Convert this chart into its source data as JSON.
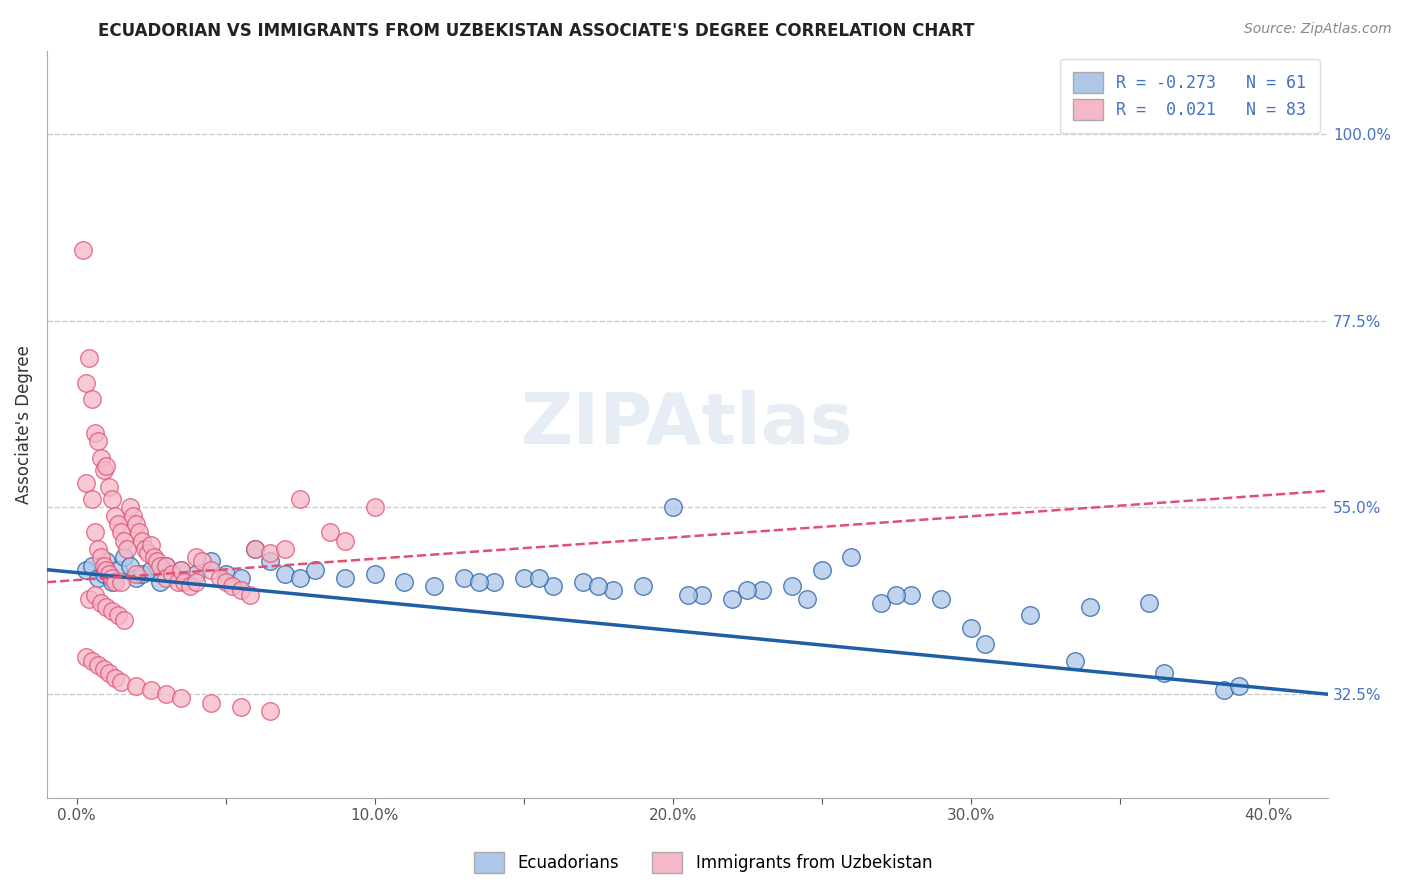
{
  "title": "ECUADORIAN VS IMMIGRANTS FROM UZBEKISTAN ASSOCIATE'S DEGREE CORRELATION CHART",
  "source": "Source: ZipAtlas.com",
  "ylabel": "Associate's Degree",
  "x_ticks": [
    0.0,
    5.0,
    10.0,
    15.0,
    20.0,
    25.0,
    30.0,
    35.0,
    40.0
  ],
  "x_tick_labels": [
    "0.0%",
    "",
    "10.0%",
    "",
    "20.0%",
    "",
    "30.0%",
    "",
    "40.0%"
  ],
  "y_ticks_right": [
    32.5,
    55.0,
    77.5,
    100.0
  ],
  "y_tick_labels_right": [
    "32.5%",
    "55.0%",
    "77.5%",
    "100.0%"
  ],
  "xlim": [
    -1.0,
    42.0
  ],
  "ylim": [
    20.0,
    110.0
  ],
  "legend_entry1": "R = -0.273   N = 61",
  "legend_entry2": "R =  0.021   N = 83",
  "ecuadorians_color": "#aec6e8",
  "uzbekistan_color": "#f5b8c8",
  "trendline_blue_color": "#1f5fa6",
  "trendline_pink_color": "#e05070",
  "background_color": "#ffffff",
  "watermark": "ZIPAtlas",
  "blue_scatter_x": [
    0.3,
    0.5,
    0.7,
    0.9,
    1.0,
    1.2,
    1.4,
    1.6,
    1.8,
    2.0,
    2.2,
    2.5,
    2.8,
    3.0,
    3.5,
    4.0,
    4.5,
    5.0,
    5.5,
    6.0,
    6.5,
    7.0,
    7.5,
    8.0,
    9.0,
    10.0,
    11.0,
    12.0,
    13.0,
    14.0,
    15.0,
    16.0,
    17.0,
    18.0,
    19.0,
    20.0,
    21.0,
    22.0,
    23.0,
    24.0,
    25.0,
    26.0,
    27.0,
    28.0,
    29.0,
    30.0,
    32.0,
    34.0,
    36.0,
    38.5,
    13.5,
    15.5,
    17.5,
    20.5,
    22.5,
    24.5,
    27.5,
    30.5,
    33.5,
    36.5,
    39.0
  ],
  "blue_scatter_y": [
    47.5,
    48.0,
    46.5,
    47.0,
    48.5,
    46.0,
    47.5,
    49.0,
    48.0,
    46.5,
    47.0,
    47.5,
    46.0,
    48.0,
    47.5,
    47.0,
    48.5,
    47.0,
    46.5,
    50.0,
    48.5,
    47.0,
    46.5,
    47.5,
    46.5,
    47.0,
    46.0,
    45.5,
    46.5,
    46.0,
    46.5,
    45.5,
    46.0,
    45.0,
    45.5,
    55.0,
    44.5,
    44.0,
    45.0,
    45.5,
    47.5,
    49.0,
    43.5,
    44.5,
    44.0,
    40.5,
    42.0,
    43.0,
    43.5,
    33.0,
    46.0,
    46.5,
    45.5,
    44.5,
    45.0,
    44.0,
    44.5,
    38.5,
    36.5,
    35.0,
    33.5
  ],
  "pink_scatter_x": [
    0.2,
    0.3,
    0.3,
    0.4,
    0.5,
    0.5,
    0.6,
    0.6,
    0.7,
    0.7,
    0.8,
    0.8,
    0.9,
    0.9,
    1.0,
    1.0,
    1.1,
    1.1,
    1.2,
    1.2,
    1.3,
    1.3,
    1.4,
    1.5,
    1.5,
    1.6,
    1.7,
    1.8,
    1.9,
    2.0,
    2.0,
    2.1,
    2.2,
    2.3,
    2.4,
    2.5,
    2.6,
    2.7,
    2.8,
    3.0,
    3.0,
    3.2,
    3.4,
    3.5,
    3.6,
    3.8,
    4.0,
    4.0,
    4.2,
    4.5,
    4.8,
    5.0,
    5.2,
    5.5,
    5.8,
    6.0,
    6.5,
    7.0,
    0.4,
    0.6,
    0.8,
    1.0,
    1.2,
    1.4,
    1.6,
    0.3,
    0.5,
    0.7,
    0.9,
    1.1,
    1.3,
    1.5,
    2.0,
    2.5,
    3.0,
    3.5,
    4.5,
    5.5,
    6.5,
    7.5,
    8.5,
    9.0,
    10.0
  ],
  "pink_scatter_y": [
    86.0,
    70.0,
    58.0,
    73.0,
    68.0,
    56.0,
    64.0,
    52.0,
    63.0,
    50.0,
    61.0,
    49.0,
    59.5,
    48.0,
    60.0,
    47.5,
    57.5,
    47.0,
    56.0,
    46.5,
    54.0,
    46.0,
    53.0,
    52.0,
    46.0,
    51.0,
    50.0,
    55.0,
    54.0,
    53.0,
    47.0,
    52.0,
    51.0,
    50.0,
    49.5,
    50.5,
    49.0,
    48.5,
    48.0,
    48.0,
    46.5,
    47.0,
    46.0,
    47.5,
    46.0,
    45.5,
    49.0,
    46.0,
    48.5,
    47.5,
    46.5,
    46.0,
    45.5,
    45.0,
    44.5,
    50.0,
    49.5,
    50.0,
    44.0,
    44.5,
    43.5,
    43.0,
    42.5,
    42.0,
    41.5,
    37.0,
    36.5,
    36.0,
    35.5,
    35.0,
    34.5,
    34.0,
    33.5,
    33.0,
    32.5,
    32.0,
    31.5,
    31.0,
    30.5,
    56.0,
    52.0,
    51.0,
    55.0
  ]
}
